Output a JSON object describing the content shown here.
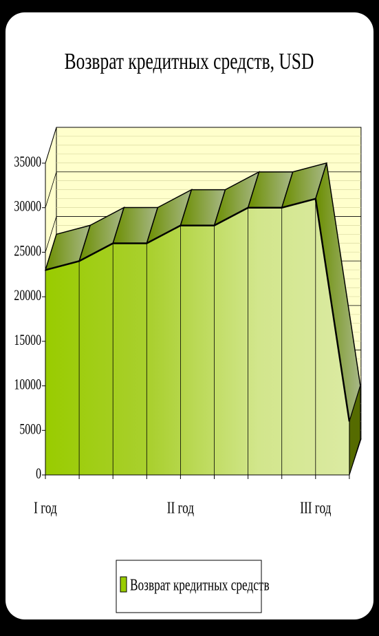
{
  "chart_data": {
    "type": "area3d",
    "title": "Возврат кредитных средств, USD",
    "categories": [
      "I год",
      null,
      null,
      null,
      "II год",
      null,
      null,
      null,
      "III год",
      null
    ],
    "series": [
      {
        "name": "Возврат кредитных средств",
        "color": "#99cc00",
        "values": [
          23000,
          24000,
          26000,
          26000,
          28000,
          28000,
          30000,
          30000,
          31000,
          6000
        ]
      }
    ],
    "ylim": [
      0,
      35000
    ],
    "yticks": [
      0,
      5000,
      10000,
      15000,
      20000,
      25000,
      30000,
      35000
    ],
    "grid": true,
    "legend": "bottom"
  }
}
